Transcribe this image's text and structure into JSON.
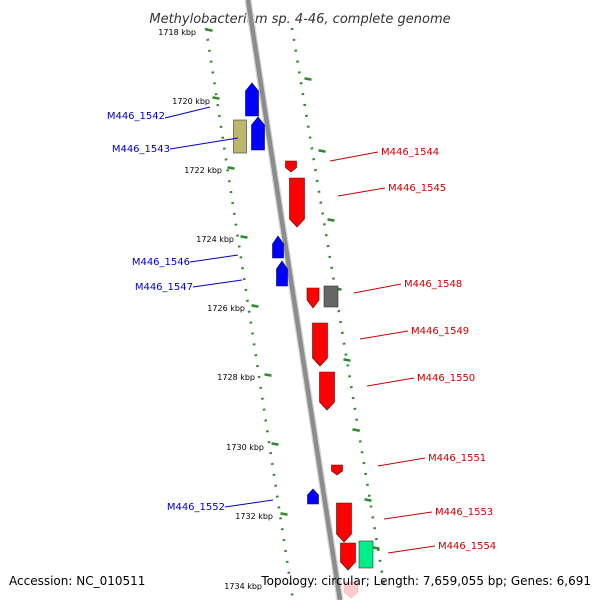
{
  "title": "Methylobacterium sp. 4-46, complete genome",
  "accession": "Accession: NC_010511",
  "stats": "Topology: circular; Length: 7,659,055 bp; Genes: 6,691",
  "kbp_ticks": [
    "1718 kbp",
    "1720 kbp",
    "1722 kbp",
    "1724 kbp",
    "1726 kbp",
    "1728 kbp",
    "1730 kbp",
    "1732 kbp",
    "1734 kbp"
  ],
  "genes": [
    {
      "label": "M446_1542",
      "strand": "minus",
      "color": "#0000ff"
    },
    {
      "label": "M446_1543",
      "strand": "minus",
      "color": "#0000ff",
      "extra_color": "#bdb76b"
    },
    {
      "label": "M446_1544",
      "strand": "plus",
      "color": "#ff0000"
    },
    {
      "label": "M446_1545",
      "strand": "plus",
      "color": "#ff0000"
    },
    {
      "label": "M446_1546",
      "strand": "minus",
      "color": "#0000ff"
    },
    {
      "label": "M446_1547",
      "strand": "minus",
      "color": "#0000ff"
    },
    {
      "label": "M446_1548",
      "strand": "plus",
      "color": "#ff0000",
      "extra_color": "#666666"
    },
    {
      "label": "M446_1549",
      "strand": "plus",
      "color": "#ff0000"
    },
    {
      "label": "M446_1550",
      "strand": "plus",
      "color": "#ff0000"
    },
    {
      "label": "M446_1551",
      "strand": "plus",
      "color": "#ff0000"
    },
    {
      "label": "M446_1552",
      "strand": "minus",
      "color": "#0000ff"
    },
    {
      "label": "M446_1553",
      "strand": "plus",
      "color": "#ff0000"
    },
    {
      "label": "M446_1554",
      "strand": "plus",
      "color": "#ff0000",
      "extra_color": "#00ee88"
    }
  ],
  "colors": {
    "backbone": "#8c8c8c",
    "dotted_track": "#2e8b2e",
    "minus_label": "#0000cc",
    "plus_label": "#cc0000"
  }
}
